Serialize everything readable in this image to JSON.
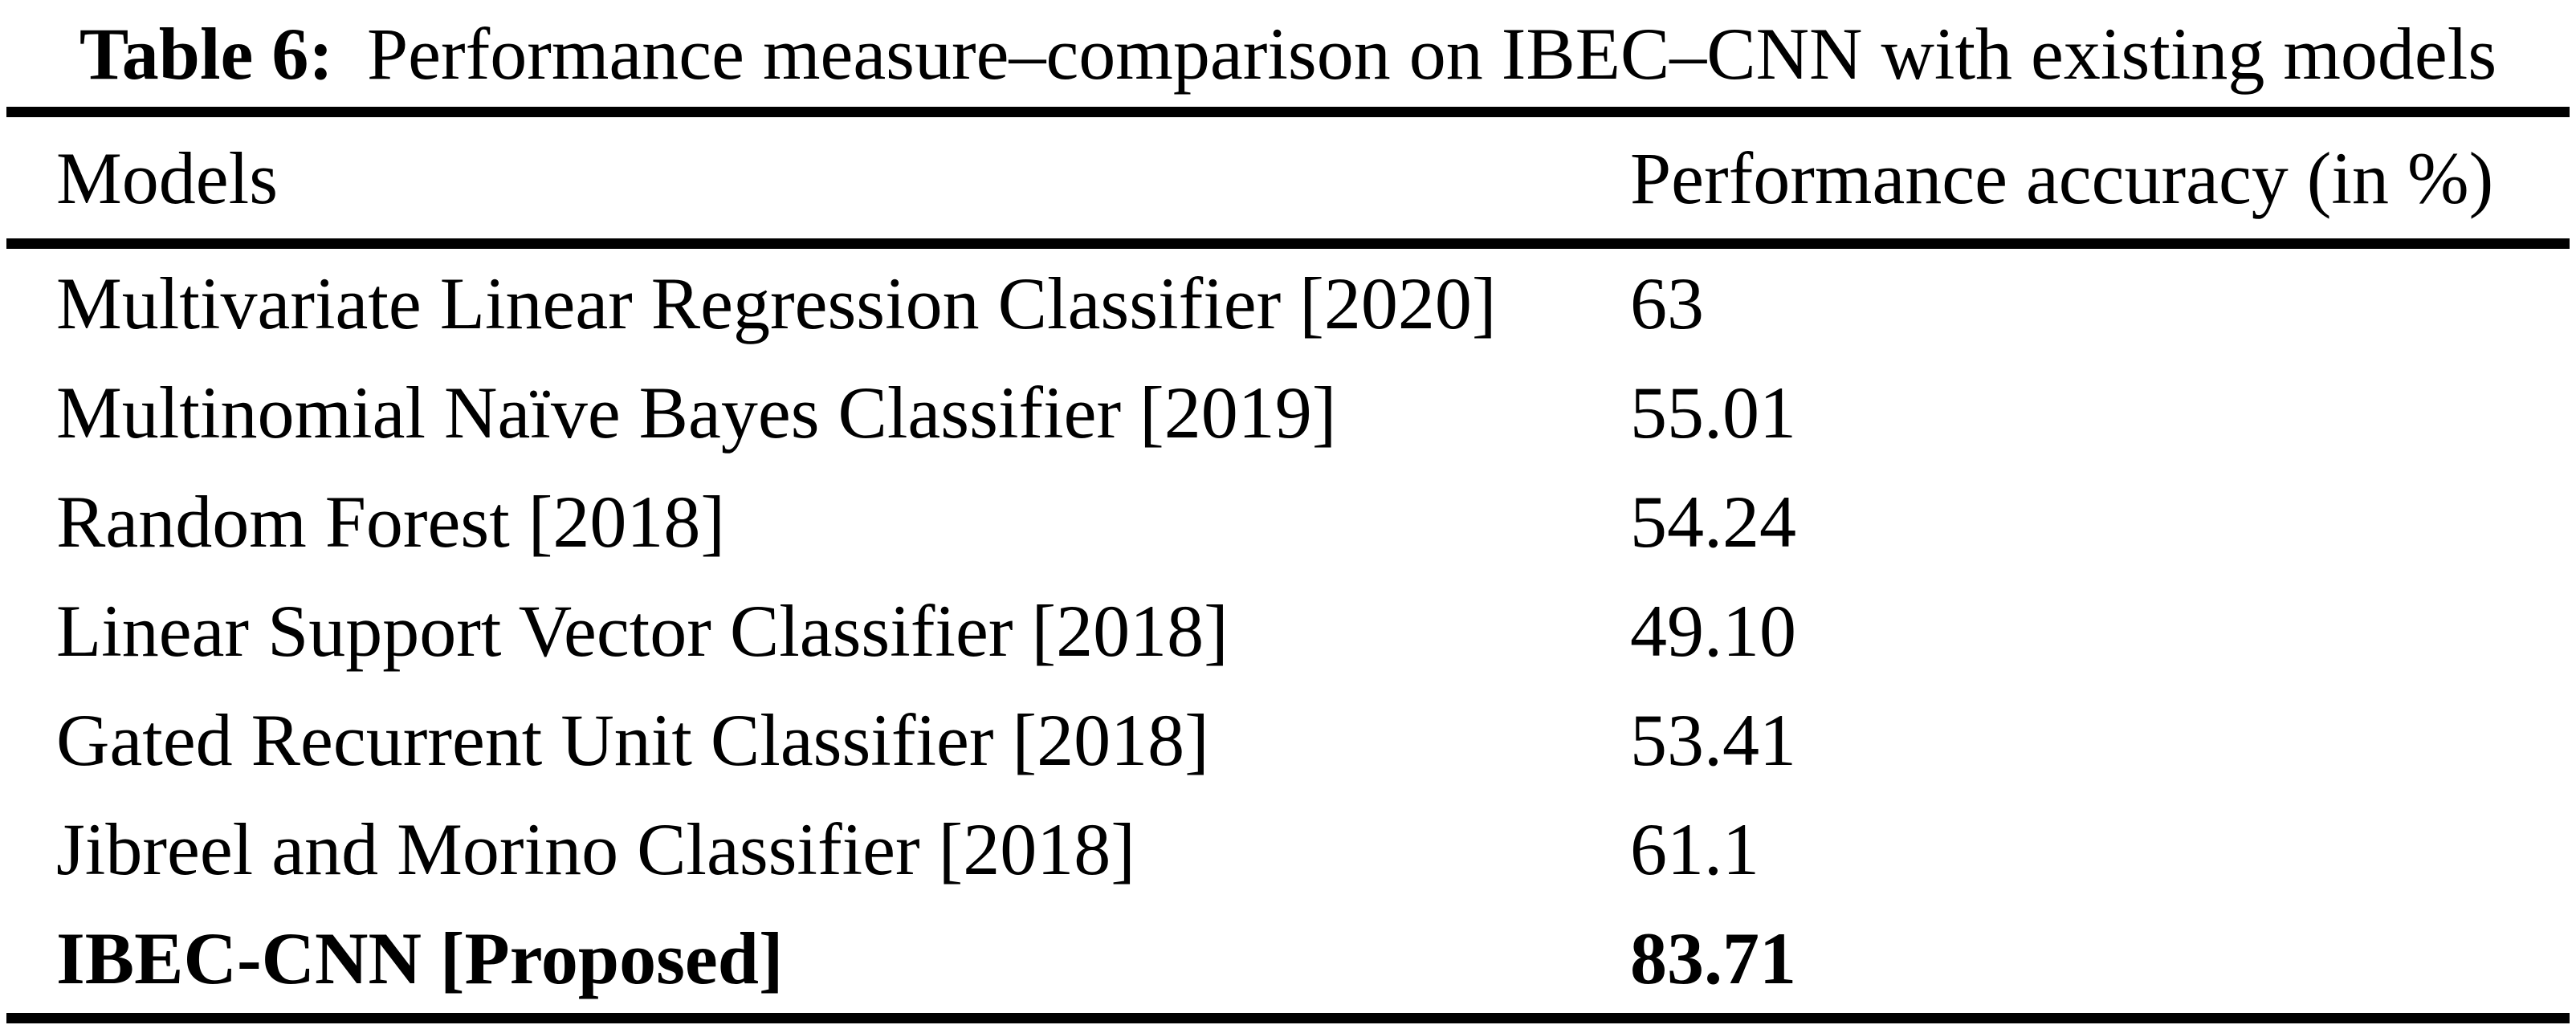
{
  "caption": {
    "label": "Table 6:",
    "text": "Performance measure–comparison on IBEC–CNN with existing models"
  },
  "table": {
    "headers": {
      "models": "Models",
      "accuracy": "Performance accuracy (in %)"
    },
    "rows": [
      {
        "model": "Multivariate Linear Regression Classifier [2020]",
        "accuracy": "63",
        "emphasis": "normal"
      },
      {
        "model": "Multinomial Naïve Bayes Classifier [2019]",
        "accuracy": "55.01",
        "emphasis": "normal"
      },
      {
        "model": "Random Forest [2018]",
        "accuracy": "54.24",
        "emphasis": "normal"
      },
      {
        "model": "Linear Support Vector Classifier [2018]",
        "accuracy": "49.10",
        "emphasis": "normal"
      },
      {
        "model": "Gated Recurrent Unit Classifier [2018]",
        "accuracy": "53.41",
        "emphasis": "normal"
      },
      {
        "model": "Jibreel and Morino Classifier [2018]",
        "accuracy": "61.1",
        "emphasis": "normal"
      },
      {
        "model": "IBEC-CNN [Proposed]",
        "accuracy": "83.71",
        "emphasis": "bold"
      }
    ],
    "text_color": "#000000",
    "background_color": "#ffffff",
    "rule_color": "#000000"
  }
}
